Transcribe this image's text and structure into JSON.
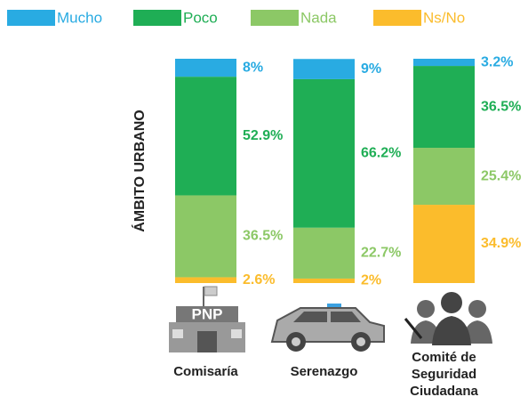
{
  "chart_data": {
    "type": "stacked_bar",
    "y_label": "ÁMBITO URBANO",
    "categories": [
      "Comisaría",
      "Serenazgo",
      "Comité de Seguridad Ciudadana"
    ],
    "ylim": [
      0,
      100
    ],
    "series": [
      {
        "name": "Mucho",
        "color": "#29abe2",
        "values": [
          8,
          9,
          3.2
        ],
        "value_labels": [
          "8%",
          "9%",
          "3.2%"
        ]
      },
      {
        "name": "Poco",
        "color": "#1fae55",
        "values": [
          52.9,
          66.2,
          36.5
        ],
        "value_labels": [
          "52.9%",
          "66.2%",
          "36.5%"
        ]
      },
      {
        "name": "Nada",
        "color": "#8cc866",
        "values": [
          36.5,
          22.7,
          25.4
        ],
        "value_labels": [
          "36.5%",
          "22.7%",
          "25.4%"
        ]
      },
      {
        "name": "Ns/No",
        "color": "#fbbc2c",
        "values": [
          2.6,
          2,
          34.9
        ],
        "value_labels": [
          "2.6%",
          "2%",
          "34.9%"
        ]
      }
    ],
    "icon_text": "PNP"
  }
}
